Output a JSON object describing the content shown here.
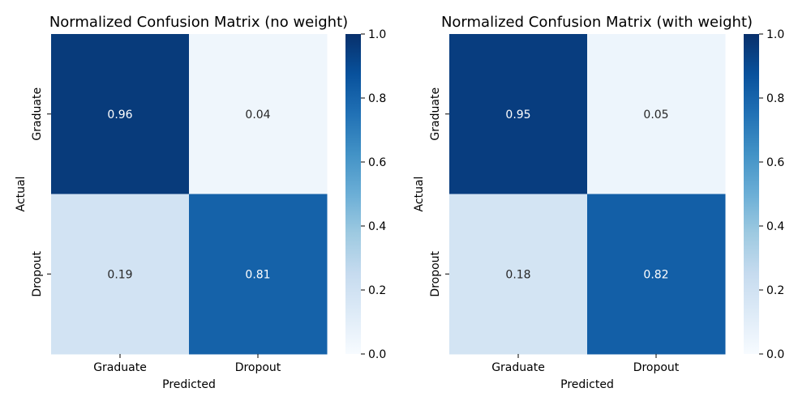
{
  "chart_data": [
    {
      "type": "heatmap",
      "title": "Normalized Confusion Matrix (no weight)",
      "xlabel": "Predicted",
      "ylabel": "Actual",
      "x_categories": [
        "Graduate",
        "Dropout"
      ],
      "y_categories": [
        "Graduate",
        "Dropout"
      ],
      "values": [
        [
          0.96,
          0.04
        ],
        [
          0.19,
          0.81
        ]
      ],
      "value_labels": [
        [
          "0.96",
          "0.04"
        ],
        [
          "0.19",
          "0.81"
        ]
      ],
      "colorbar": {
        "min": 0,
        "max": 1,
        "ticks": [
          "0.0",
          "0.2",
          "0.4",
          "0.6",
          "0.8",
          "1.0"
        ]
      },
      "colormap": "Blues"
    },
    {
      "type": "heatmap",
      "title": "Normalized Confusion Matrix (with weight)",
      "xlabel": "Predicted",
      "ylabel": "Actual",
      "x_categories": [
        "Graduate",
        "Dropout"
      ],
      "y_categories": [
        "Graduate",
        "Dropout"
      ],
      "values": [
        [
          0.95,
          0.05
        ],
        [
          0.18,
          0.82
        ]
      ],
      "value_labels": [
        [
          "0.95",
          "0.05"
        ],
        [
          "0.18",
          "0.82"
        ]
      ],
      "colorbar": {
        "min": 0,
        "max": 1,
        "ticks": [
          "0.0",
          "0.2",
          "0.4",
          "0.6",
          "0.8",
          "1.0"
        ]
      },
      "colormap": "Blues"
    }
  ]
}
